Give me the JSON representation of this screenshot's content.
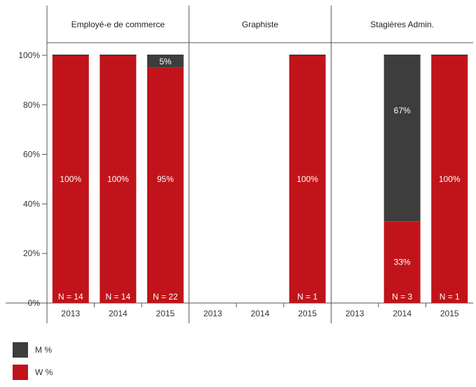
{
  "chart_data": {
    "type": "bar",
    "stacked": true,
    "ylim": [
      0,
      100
    ],
    "y_ticks": [
      0,
      20,
      40,
      60,
      80,
      100
    ],
    "y_tick_suffix": "%",
    "categories": [
      "2013",
      "2014",
      "2015"
    ],
    "panels": [
      {
        "title": "Employé-e de commerce",
        "bars": [
          {
            "year": "2013",
            "W": 100,
            "M": 0,
            "n": "N = 14",
            "w_label": "100%",
            "m_label": ""
          },
          {
            "year": "2014",
            "W": 100,
            "M": 0,
            "n": "N = 14",
            "w_label": "100%",
            "m_label": ""
          },
          {
            "year": "2015",
            "W": 95,
            "M": 5,
            "n": "N = 22",
            "w_label": "95%",
            "m_label": "5%"
          }
        ]
      },
      {
        "title": "Graphiste",
        "bars": [
          {
            "year": "2013",
            "W": null,
            "M": null,
            "n": "",
            "w_label": "",
            "m_label": ""
          },
          {
            "year": "2014",
            "W": null,
            "M": null,
            "n": "",
            "w_label": "",
            "m_label": ""
          },
          {
            "year": "2015",
            "W": 100,
            "M": 0,
            "n": "N = 1",
            "w_label": "100%",
            "m_label": ""
          }
        ]
      },
      {
        "title": "Stagières Admin.",
        "bars": [
          {
            "year": "2013",
            "W": null,
            "M": null,
            "n": "",
            "w_label": "",
            "m_label": ""
          },
          {
            "year": "2014",
            "W": 33,
            "M": 67,
            "n": "N = 3",
            "w_label": "33%",
            "m_label": "67%"
          },
          {
            "year": "2015",
            "W": 100,
            "M": 0,
            "n": "N = 1",
            "w_label": "100%",
            "m_label": ""
          }
        ]
      }
    ],
    "series": [
      {
        "name": "M %",
        "color": "#3d3d3d"
      },
      {
        "name": "W %",
        "color": "#c0141a"
      }
    ],
    "legend_position": "bottom-left",
    "grid": false
  }
}
